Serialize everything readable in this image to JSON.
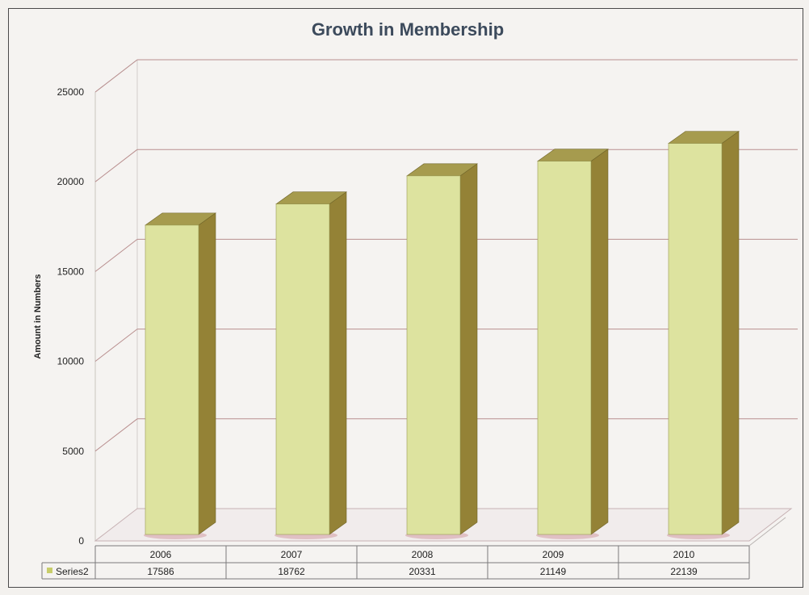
{
  "chart_data": {
    "type": "bar",
    "title": "Growth in Membership",
    "ylabel": "Amount in Numbers",
    "xlabel": "",
    "categories": [
      "2006",
      "2007",
      "2008",
      "2009",
      "2010"
    ],
    "series": [
      {
        "name": "Series2",
        "values": [
          17586,
          18762,
          20331,
          21149,
          22139
        ]
      }
    ],
    "ylim": [
      0,
      25000
    ],
    "yticks": [
      "0",
      "5000",
      "10000",
      "15000",
      "20000",
      "25000"
    ],
    "data_table": {
      "row_label": "Series2",
      "values": [
        "17586",
        "18762",
        "20331",
        "21149",
        "22139"
      ]
    },
    "grid": true,
    "legend": "data-table",
    "colors": {
      "bar_front": "#dde39f",
      "bar_top": "#a69b4e",
      "bar_side": "#948236",
      "grid": "#b98f8f",
      "legend_key": "#c8cd6a"
    }
  }
}
